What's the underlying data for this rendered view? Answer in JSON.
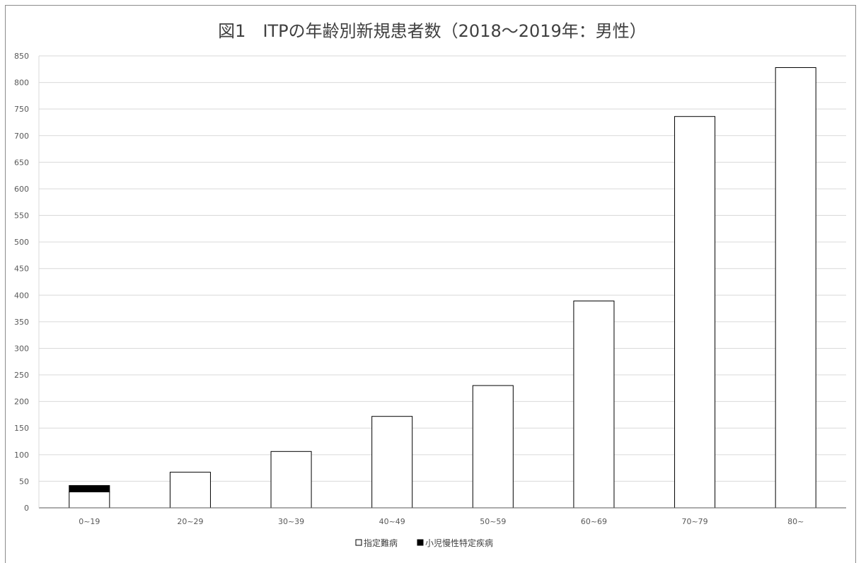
{
  "chart_data": {
    "type": "bar",
    "stacked": true,
    "title": "図1　ITPの年齢別新規患者数（2018～2019年：男性）",
    "categories": [
      "0~19",
      "20~29",
      "30~39",
      "40~49",
      "50~59",
      "60~69",
      "70~79",
      "80~"
    ],
    "series": [
      {
        "name": "指定難病",
        "color": "#ffffff",
        "values": [
          30,
          67,
          106,
          172,
          230,
          389,
          736,
          828
        ]
      },
      {
        "name": "小児慢性特定疾病",
        "color": "#000000",
        "values": [
          12,
          0,
          0,
          0,
          0,
          0,
          0,
          0
        ]
      }
    ],
    "ylim": [
      0,
      850
    ],
    "yticks": [
      0,
      50,
      100,
      150,
      200,
      250,
      300,
      350,
      400,
      450,
      500,
      550,
      600,
      650,
      700,
      750,
      800,
      850
    ],
    "grid": true,
    "legend_position": "bottom"
  }
}
